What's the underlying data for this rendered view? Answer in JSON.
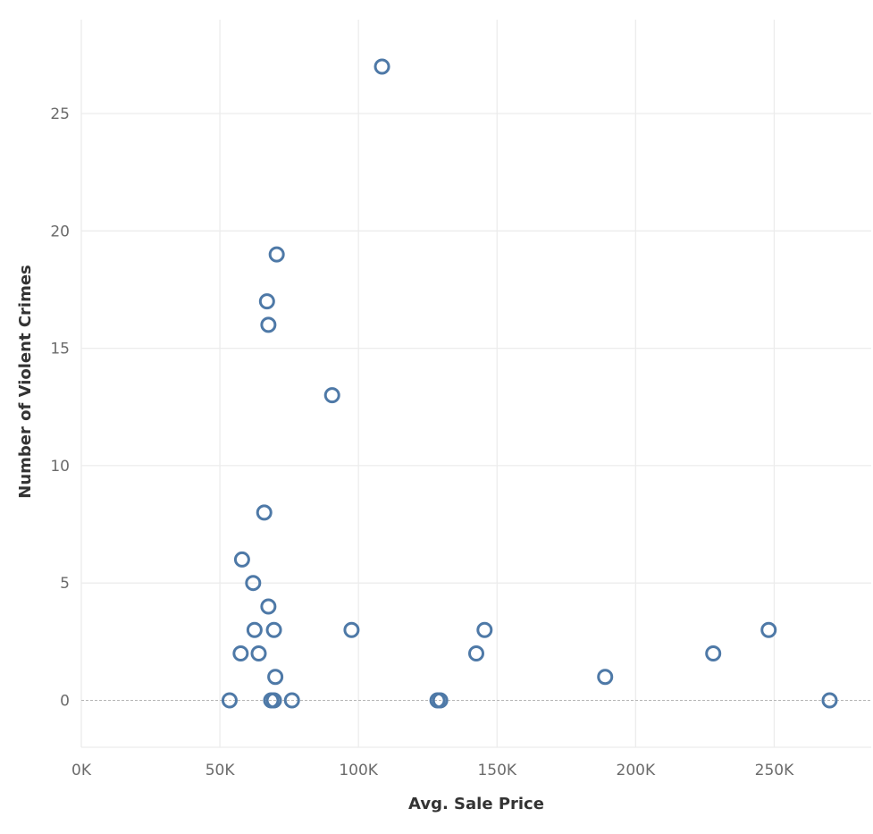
{
  "chart_data": {
    "type": "scatter",
    "title": "",
    "xlabel": "Avg. Sale Price",
    "ylabel": "Number of Violent Crimes",
    "xlim": [
      0,
      285000
    ],
    "ylim": [
      -2,
      29
    ],
    "x_ticks": [
      0,
      50000,
      100000,
      150000,
      200000,
      250000
    ],
    "x_tick_labels": [
      "0K",
      "50K",
      "100K",
      "150K",
      "200K",
      "250K"
    ],
    "y_ticks": [
      0,
      5,
      10,
      15,
      20,
      25
    ],
    "y_tick_labels": [
      "0",
      "5",
      "10",
      "15",
      "20",
      "25"
    ],
    "grid": true,
    "marker": "open-circle",
    "color": "#4e79a7",
    "series": [
      {
        "points": [
          {
            "x": 108500,
            "y": 27
          },
          {
            "x": 70500,
            "y": 19
          },
          {
            "x": 67000,
            "y": 17
          },
          {
            "x": 67500,
            "y": 16
          },
          {
            "x": 90500,
            "y": 13
          },
          {
            "x": 66000,
            "y": 8
          },
          {
            "x": 58000,
            "y": 6
          },
          {
            "x": 62000,
            "y": 5
          },
          {
            "x": 67500,
            "y": 4
          },
          {
            "x": 62500,
            "y": 3
          },
          {
            "x": 69500,
            "y": 3
          },
          {
            "x": 97500,
            "y": 3
          },
          {
            "x": 145500,
            "y": 3
          },
          {
            "x": 248000,
            "y": 3
          },
          {
            "x": 57500,
            "y": 2
          },
          {
            "x": 64000,
            "y": 2
          },
          {
            "x": 142500,
            "y": 2
          },
          {
            "x": 228000,
            "y": 2
          },
          {
            "x": 70000,
            "y": 1
          },
          {
            "x": 189000,
            "y": 1
          },
          {
            "x": 53500,
            "y": 0
          },
          {
            "x": 68500,
            "y": 0
          },
          {
            "x": 69500,
            "y": 0
          },
          {
            "x": 76000,
            "y": 0
          },
          {
            "x": 128500,
            "y": 0
          },
          {
            "x": 129500,
            "y": 0
          },
          {
            "x": 270000,
            "y": 0
          }
        ]
      }
    ]
  }
}
